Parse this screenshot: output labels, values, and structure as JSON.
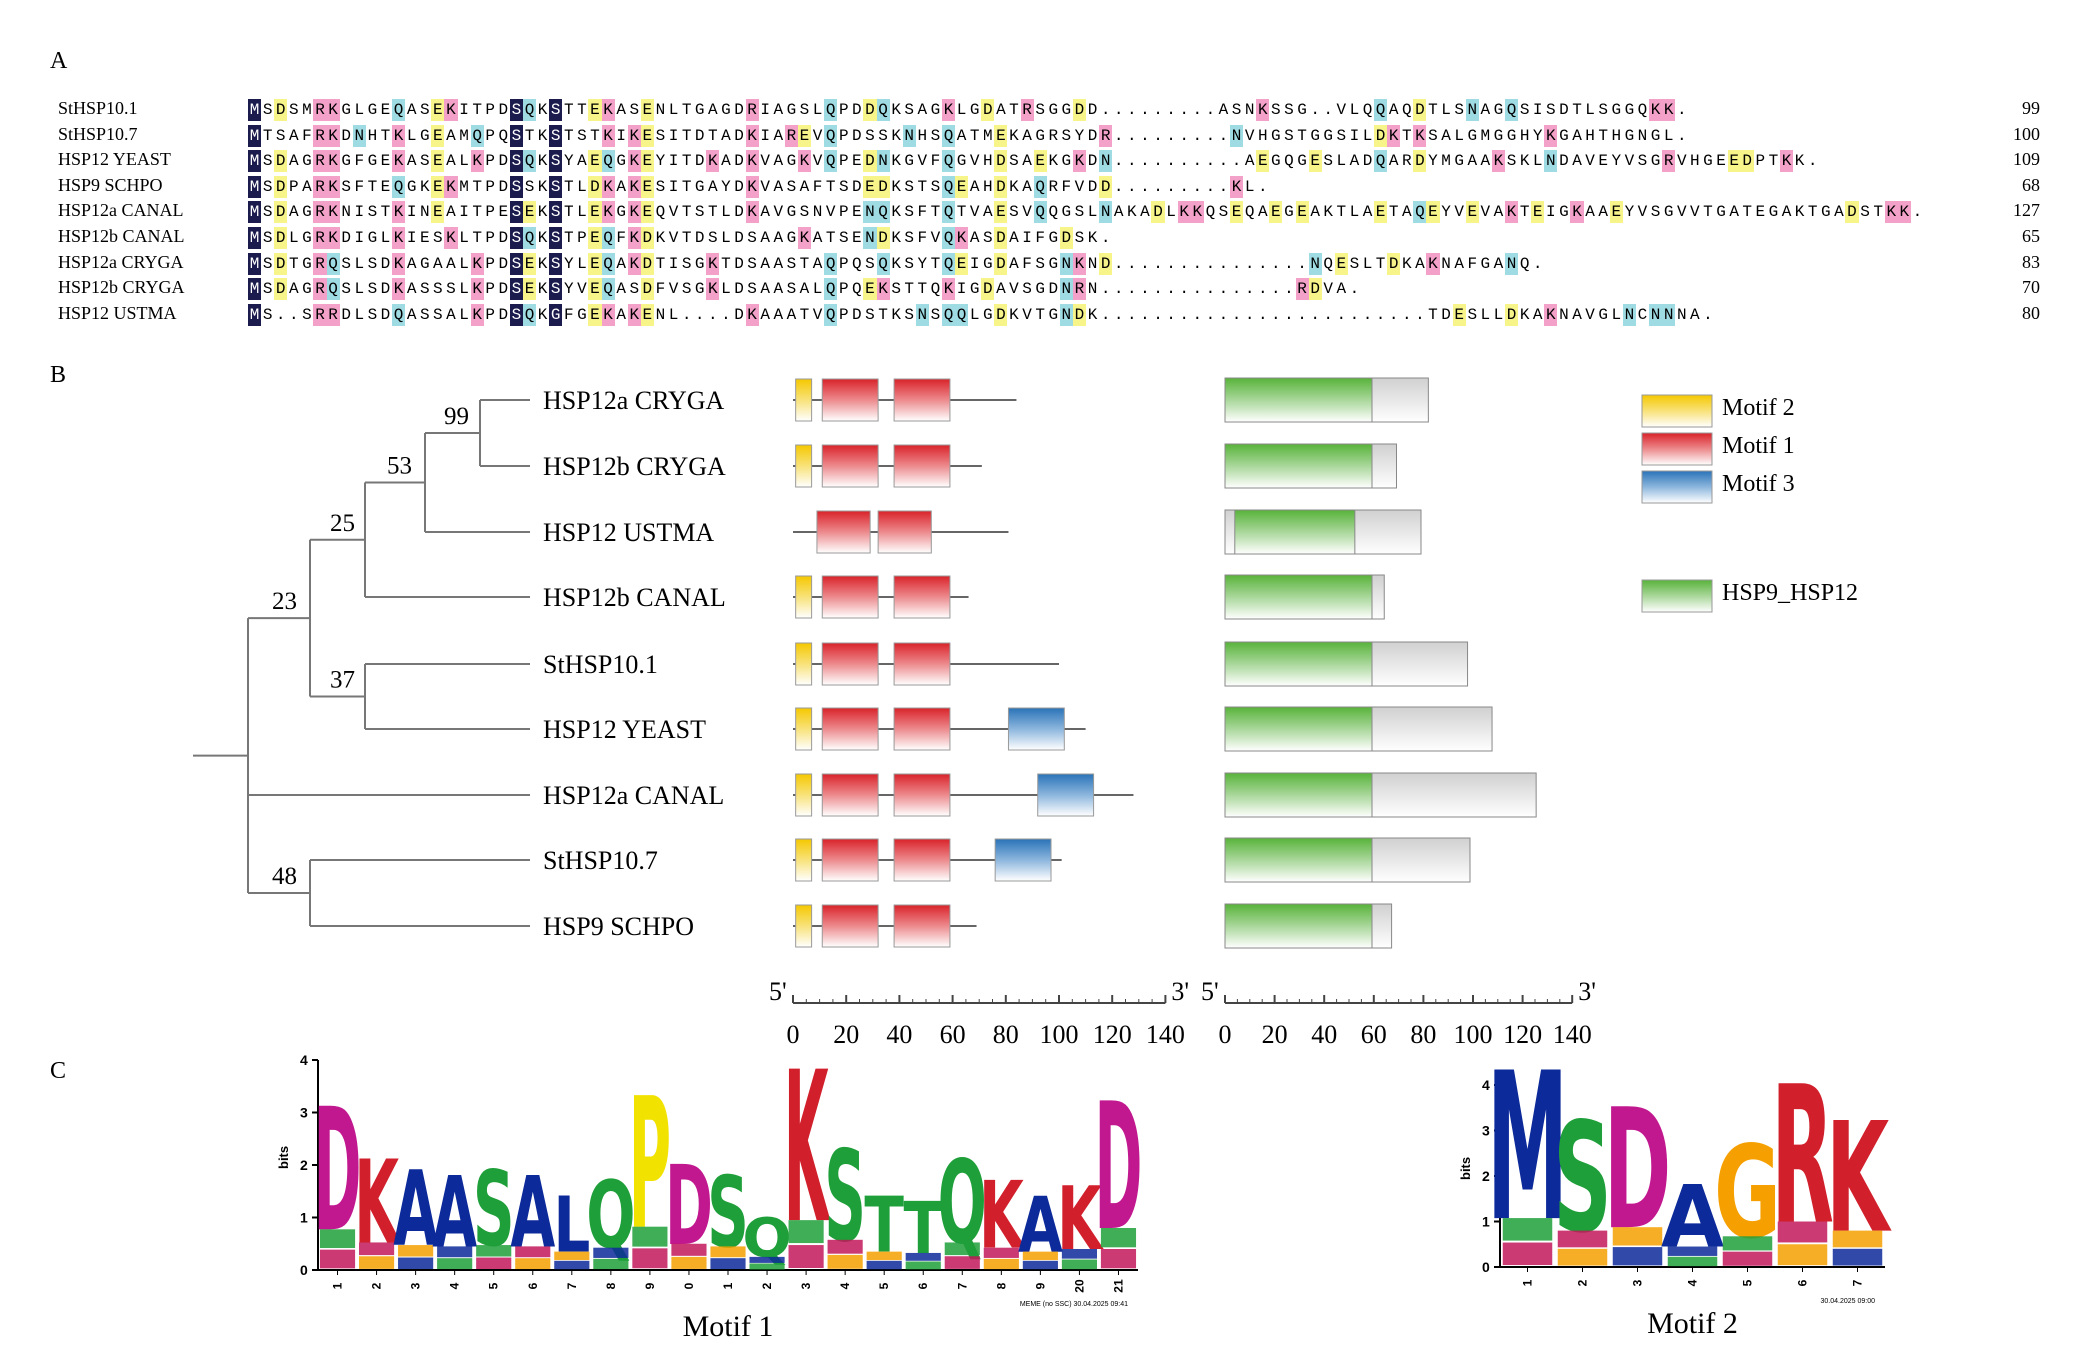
{
  "panels": {
    "a": "A",
    "b": "B",
    "c": "C"
  },
  "alignment": {
    "rows": [
      {
        "name": "StHSP10.1",
        "text": "MSDSMRKGLGEQASEKITPDSQKSTTEKASENLTGAGDRIAGSLQPDDQKSAGKLGDATRSGGDD.........ASNKSSG..VLQQAQDTLSNAGQSISDTLSGGQKK.",
        "count": "99"
      },
      {
        "name": "StHSP10.7",
        "text": "MTSAFRKDNHTKLGEAMQPQSTKSTSTKIKESITDTADKIAREVQPDSSKNHSQATMEKAGRSYDR.........NVHGSTGGSILDKTKSALGMGGHYKGAHTHGNGL.",
        "count": "100"
      },
      {
        "name": "HSP12 YEAST",
        "text": "MSDAGRKGFGEKASEALKPDSQKSYAEQGKEYITDKADKVAGKVQPEDNKGVFQGVHDSAEKGKDN..........AEGQGESLADQARDYMGAAKSKLNDAVEYVSGRVHGEEDPTKK.",
        "count": "109"
      },
      {
        "name": "HSP9 SCHPO",
        "text": "MSDPARKSFTEQGKEKMTPDSSKSTLDKAKESITGAYDKVASAFTSDEDKSTSQEAHDKAQRFVDD.........KL.",
        "count": "68"
      },
      {
        "name": "HSP12a CANAL",
        "text": "MSDAGRKNISTKINEAITPESEKSTLEKGKEQVTSTLDKAVGSNVPENQKSFTQTVAESVQQGSLNAKADLKKQSEQAEGEAKTLAETAQEYVEVAKTEIGKAAEYVSGVVTGATEGAKTGADSTKK.",
        "count": "127"
      },
      {
        "name": "HSP12b CANAL",
        "text": "MSDLGRKDIGLKIESKLTPDSQKSTPEQFKDKVTDSLDSAAGKATSENDKSFVQKASDAIFGDSK.",
        "count": "65"
      },
      {
        "name": "HSP12a CRYGA",
        "text": "MSDTGRQSLSDKAGAALKPDSEKSYLEQAKDTISGKTDSAASTAQPQSQKSYTQEIGDAFSGNKND...............NQESLTDKAKNAFGANQ.",
        "count": "83"
      },
      {
        "name": "HSP12b CRYGA",
        "text": "MSDAGRQSLSDKASSSLKPDSEKSYVEQASDFVSGKLDSAASALQPQEKSTTQKIGDAVSGDNRN...............RDVA.",
        "count": "70"
      },
      {
        "name": "HSP12 USTMA",
        "text": "MS..SRRDLSDQASSALKPDSQKGFGEKAKENL....DKAAATVQPDSTKSNSQQLGDKVTGNDK.........................TDESLLDKAKNAVGLNCNNNA.",
        "count": "80"
      }
    ]
  },
  "tree": {
    "taxa": [
      "HSP12a CRYGA",
      "HSP12b CRYGA",
      "HSP12 USTMA",
      "HSP12b CANAL",
      "StHSP10.1",
      "HSP12 YEAST",
      "HSP12a CANAL",
      "StHSP10.7",
      "HSP9 SCHPO"
    ],
    "bootstraps": [
      "99",
      "53",
      "25",
      "23",
      "37",
      "48"
    ]
  },
  "motif_map": {
    "axis_end_labels": {
      "five_prime": "5'",
      "three_prime": "3'"
    },
    "ticks": [
      "0",
      "20",
      "40",
      "60",
      "80",
      "100",
      "120",
      "140"
    ],
    "proteins": [
      {
        "len": 84,
        "motifs": [
          [
            1,
            7,
            2
          ],
          [
            11,
            32,
            1
          ],
          [
            38,
            59,
            1
          ]
        ]
      },
      {
        "len": 71,
        "motifs": [
          [
            1,
            7,
            2
          ],
          [
            11,
            32,
            1
          ],
          [
            38,
            59,
            1
          ]
        ]
      },
      {
        "len": 81,
        "motifs": [
          [
            9,
            29,
            1
          ],
          [
            32,
            52,
            1
          ]
        ]
      },
      {
        "len": 66,
        "motifs": [
          [
            1,
            7,
            2
          ],
          [
            11,
            32,
            1
          ],
          [
            38,
            59,
            1
          ]
        ]
      },
      {
        "len": 100,
        "motifs": [
          [
            1,
            7,
            2
          ],
          [
            11,
            32,
            1
          ],
          [
            38,
            59,
            1
          ]
        ]
      },
      {
        "len": 110,
        "motifs": [
          [
            1,
            7,
            2
          ],
          [
            11,
            32,
            1
          ],
          [
            38,
            59,
            1
          ],
          [
            81,
            102,
            3
          ]
        ]
      },
      {
        "len": 128,
        "motifs": [
          [
            1,
            7,
            2
          ],
          [
            11,
            32,
            1
          ],
          [
            38,
            59,
            1
          ],
          [
            92,
            113,
            3
          ]
        ]
      },
      {
        "len": 101,
        "motifs": [
          [
            1,
            7,
            2
          ],
          [
            11,
            32,
            1
          ],
          [
            38,
            59,
            1
          ],
          [
            76,
            97,
            3
          ]
        ]
      },
      {
        "len": 69,
        "motifs": [
          [
            1,
            7,
            2
          ],
          [
            11,
            32,
            1
          ],
          [
            38,
            59,
            1
          ]
        ]
      }
    ]
  },
  "domain_map": {
    "axis_end_labels": {
      "five_prime": "5'",
      "three_prime": "3'"
    },
    "ticks": [
      "0",
      "20",
      "40",
      "60",
      "80",
      "100",
      "120",
      "140"
    ],
    "proteins": [
      {
        "len": 83,
        "dom": [
          0,
          60
        ]
      },
      {
        "len": 70,
        "dom": [
          0,
          60
        ]
      },
      {
        "len": 80,
        "dom": [
          4,
          53
        ]
      },
      {
        "len": 65,
        "dom": [
          0,
          60
        ]
      },
      {
        "len": 99,
        "dom": [
          0,
          60
        ]
      },
      {
        "len": 109,
        "dom": [
          0,
          60
        ]
      },
      {
        "len": 127,
        "dom": [
          0,
          60
        ]
      },
      {
        "len": 100,
        "dom": [
          0,
          60
        ]
      },
      {
        "len": 68,
        "dom": [
          0,
          60
        ]
      }
    ]
  },
  "legend": [
    {
      "label": "Motif 2",
      "color": "#f5c800"
    },
    {
      "label": "Motif 1",
      "color": "#d9232a"
    },
    {
      "label": "Motif 3",
      "color": "#2a73b8"
    },
    {
      "label": "HSP9_HSP12",
      "color": "#58b33a"
    }
  ],
  "logos": {
    "motif1": {
      "title": "Motif 1",
      "ylabel": "bits",
      "yticks": [
        "0",
        "1",
        "2",
        "3",
        "4"
      ],
      "positions": [
        "1",
        "2",
        "3",
        "4",
        "5",
        "6",
        "7",
        "8",
        "9",
        "0",
        "1",
        "2",
        "3",
        "4",
        "5",
        "6",
        "7",
        "8",
        "9",
        "20",
        "21"
      ],
      "top_letters": [
        "D",
        "K",
        "A",
        "A",
        "S",
        "A",
        "L",
        "Q",
        "P",
        "D",
        "S",
        "Q",
        "K",
        "S",
        "T",
        "T",
        "Q",
        "K",
        "A",
        "K",
        "D"
      ],
      "heights": [
        3.1,
        2.1,
        1.9,
        1.8,
        1.9,
        1.8,
        1.4,
        1.7,
        3.3,
        2.0,
        1.8,
        1.0,
        3.8,
        2.3,
        1.4,
        1.3,
        2.1,
        1.7,
        1.4,
        1.6,
        3.2
      ],
      "footer": "MEME (no SSC) 30.04.2025 09:41"
    },
    "motif2": {
      "title": "Motif 2",
      "ylabel": "bits",
      "yticks": [
        "0",
        "1",
        "2",
        "3",
        "4"
      ],
      "positions": [
        "1",
        "2",
        "3",
        "4",
        "5",
        "6",
        "7"
      ],
      "top_letters": [
        "M",
        "S",
        "D",
        "A",
        "G",
        "R",
        "K"
      ],
      "heights": [
        4.3,
        3.2,
        3.5,
        1.8,
        2.7,
        4.0,
        3.2
      ],
      "footer": "30.04.2025 09:00"
    }
  }
}
